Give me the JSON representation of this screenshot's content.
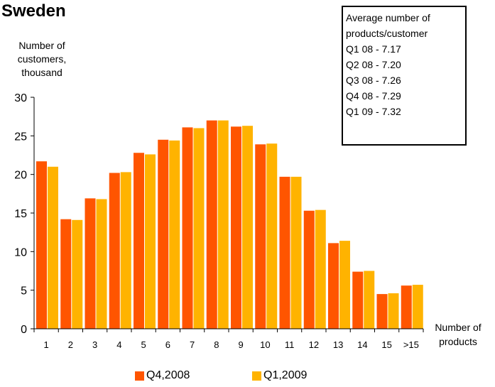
{
  "chart_data": {
    "type": "bar",
    "title": "Sweden",
    "ylabel": [
      "Number of",
      "customers,",
      "thousand"
    ],
    "xlabel": [
      "Number of",
      "products"
    ],
    "categories": [
      "1",
      "2",
      "3",
      "4",
      "5",
      "6",
      "7",
      "8",
      "9",
      "10",
      "11",
      "12",
      "13",
      "14",
      "15",
      ">15"
    ],
    "series": [
      {
        "name": "Q4,2008",
        "color": "#FF5500",
        "values": [
          21.7,
          14.2,
          16.9,
          20.2,
          22.8,
          24.5,
          26.1,
          27.0,
          26.2,
          23.9,
          19.7,
          15.3,
          11.1,
          7.4,
          4.5,
          5.6
        ]
      },
      {
        "name": "Q1,2009",
        "color": "#FFB300",
        "values": [
          21.0,
          14.1,
          16.8,
          20.3,
          22.6,
          24.4,
          26.0,
          27.0,
          26.3,
          24.0,
          19.7,
          15.4,
          11.4,
          7.5,
          4.6,
          5.7
        ]
      }
    ],
    "ylim": [
      0,
      30
    ],
    "yticks": [
      "0",
      "5",
      "10",
      "15",
      "20",
      "25",
      "30"
    ],
    "grid": false,
    "legend": "bottom",
    "info_box": [
      "Average number of",
      "products/customer",
      "Q1 08 - 7.17",
      "Q2 08 - 7.20",
      "Q3 08 - 7.26",
      "Q4 08 - 7.29",
      "Q1 09 - 7.32"
    ]
  }
}
